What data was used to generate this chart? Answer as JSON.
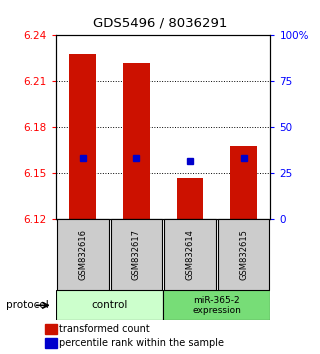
{
  "title": "GDS5496 / 8036291",
  "samples": [
    "GSM832616",
    "GSM832617",
    "GSM832614",
    "GSM832615"
  ],
  "transformed_counts": [
    6.228,
    6.222,
    6.147,
    6.168
  ],
  "percentile_ranks": [
    6.16,
    6.16,
    6.158,
    6.16
  ],
  "ymin": 6.12,
  "ymax": 6.24,
  "y_ticks_left": [
    6.12,
    6.15,
    6.18,
    6.21,
    6.24
  ],
  "y_ticks_right": [
    0,
    25,
    50,
    75,
    100
  ],
  "bar_color": "#cc1100",
  "dot_color": "#0000cc",
  "control_color": "#ccffcc",
  "mir_color": "#77dd77",
  "sample_box_color": "#cccccc",
  "background_color": "#ffffff"
}
